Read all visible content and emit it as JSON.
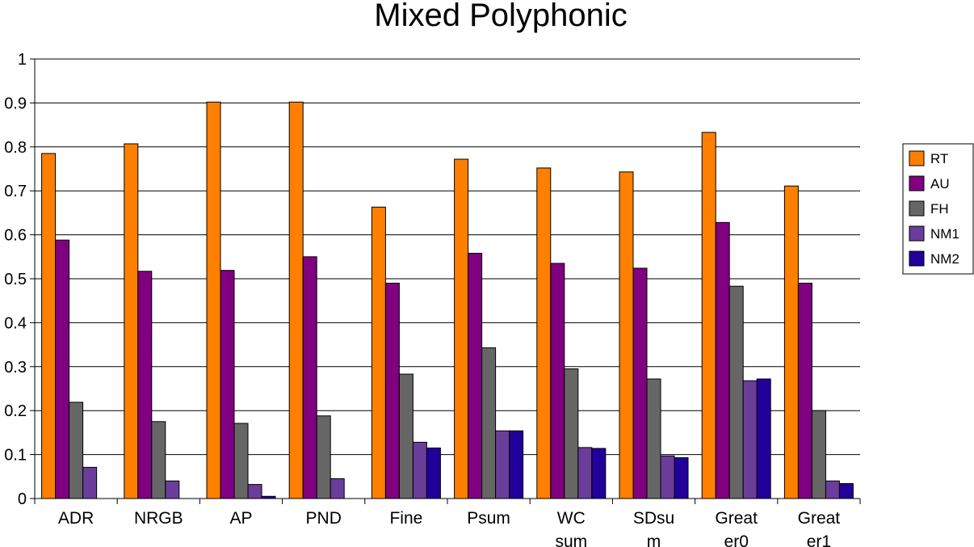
{
  "chart_data": {
    "type": "bar",
    "title": "Mixed Polyphonic",
    "xlabel": "",
    "ylabel": "",
    "ylim": [
      0,
      1
    ],
    "yticks": [
      "0",
      "0.1",
      "0.2",
      "0.3",
      "0.4",
      "0.5",
      "0.6",
      "0.7",
      "0.8",
      "0.9",
      "1"
    ],
    "grid": true,
    "legend_position": "right",
    "categories": [
      [
        "ADR"
      ],
      [
        "NRGB"
      ],
      [
        "AP"
      ],
      [
        "PND"
      ],
      [
        "Fine"
      ],
      [
        "Psum"
      ],
      [
        "WC",
        "sum"
      ],
      [
        "SDsu",
        "m"
      ],
      [
        "Great",
        "er0"
      ],
      [
        "Great",
        "er1"
      ]
    ],
    "series": [
      {
        "name": "RT",
        "color": "#ff7f00",
        "values": [
          0.785,
          0.807,
          0.902,
          0.902,
          0.663,
          0.772,
          0.752,
          0.743,
          0.833,
          0.711
        ]
      },
      {
        "name": "AU",
        "color": "#800080",
        "values": [
          0.588,
          0.517,
          0.519,
          0.55,
          0.49,
          0.558,
          0.535,
          0.524,
          0.628,
          0.49
        ]
      },
      {
        "name": "FH",
        "color": "#666666",
        "values": [
          0.219,
          0.175,
          0.171,
          0.188,
          0.283,
          0.343,
          0.295,
          0.272,
          0.483,
          0.2
        ]
      },
      {
        "name": "NM1",
        "color": "#6a3d9a",
        "values": [
          0.071,
          0.04,
          0.032,
          0.045,
          0.128,
          0.154,
          0.116,
          0.097,
          0.268,
          0.04
        ]
      },
      {
        "name": "NM2",
        "color": "#22009a",
        "values": [
          0,
          0,
          0.005,
          0,
          0.115,
          0.154,
          0.114,
          0.093,
          0.272,
          0.034
        ]
      }
    ]
  }
}
